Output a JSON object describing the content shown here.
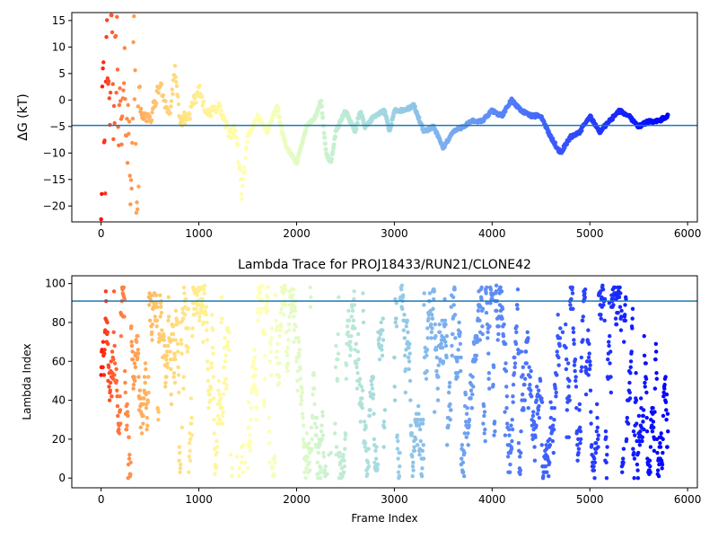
{
  "chart_data": [
    {
      "type": "scatter",
      "title": "",
      "xlabel": "",
      "ylabel": "ΔG (kT)",
      "xlim": [
        -300,
        6100
      ],
      "ylim": [
        -23,
        16.5
      ],
      "xticks": [
        0,
        1000,
        2000,
        3000,
        4000,
        5000,
        6000
      ],
      "xtick_labels": [
        "0",
        "1000",
        "2000",
        "3000",
        "4000",
        "5000",
        "6000"
      ],
      "yticks": [
        -20,
        -15,
        -10,
        -5,
        0,
        5,
        10,
        15
      ],
      "ytick_labels": [
        "−20",
        "−15",
        "−10",
        "−5",
        "0",
        "5",
        "10",
        "15"
      ],
      "hline": -4.8,
      "hline_color": "#1f77b4",
      "colormap": "rainbow (red at early frames → violet at late frames)",
      "grid": false,
      "trace_anchors": [
        [
          0,
          -20
        ],
        [
          20,
          15
        ],
        [
          40,
          -12
        ],
        [
          60,
          8
        ],
        [
          80,
          -5
        ],
        [
          100,
          12
        ],
        [
          130,
          -3
        ],
        [
          160,
          10
        ],
        [
          200,
          -8
        ],
        [
          250,
          2
        ],
        [
          300,
          -14
        ],
        [
          340,
          9
        ],
        [
          360,
          -18
        ],
        [
          400,
          -2
        ],
        [
          500,
          -4
        ],
        [
          600,
          3
        ],
        [
          700,
          -3
        ],
        [
          760,
          6
        ],
        [
          800,
          -4
        ],
        [
          900,
          -3
        ],
        [
          1000,
          2
        ],
        [
          1100,
          -3
        ],
        [
          1200,
          -1
        ],
        [
          1300,
          -6
        ],
        [
          1380,
          -6
        ],
        [
          1440,
          -18
        ],
        [
          1500,
          -7
        ],
        [
          1600,
          -3
        ],
        [
          1700,
          -6
        ],
        [
          1800,
          -1
        ],
        [
          1850,
          -6
        ],
        [
          1900,
          -9
        ],
        [
          2000,
          -12
        ],
        [
          2100,
          -5
        ],
        [
          2200,
          -3
        ],
        [
          2250,
          0
        ],
        [
          2300,
          -10
        ],
        [
          2350,
          -12
        ],
        [
          2400,
          -6
        ],
        [
          2500,
          -2
        ],
        [
          2600,
          -6
        ],
        [
          2650,
          -2
        ],
        [
          2700,
          -5
        ],
        [
          2800,
          -3
        ],
        [
          2900,
          -2
        ],
        [
          2950,
          -6
        ],
        [
          3000,
          -2
        ],
        [
          3100,
          -2
        ],
        [
          3200,
          -1
        ],
        [
          3300,
          -6
        ],
        [
          3400,
          -5
        ],
        [
          3500,
          -9
        ],
        [
          3600,
          -6
        ],
        [
          3700,
          -5
        ],
        [
          3800,
          -4
        ],
        [
          3900,
          -4
        ],
        [
          4000,
          -2
        ],
        [
          4100,
          -3
        ],
        [
          4200,
          0
        ],
        [
          4300,
          -2
        ],
        [
          4400,
          -3
        ],
        [
          4500,
          -3
        ],
        [
          4600,
          -7
        ],
        [
          4700,
          -10
        ],
        [
          4800,
          -7
        ],
        [
          4900,
          -6
        ],
        [
          5000,
          -3
        ],
        [
          5100,
          -6
        ],
        [
          5200,
          -4
        ],
        [
          5300,
          -2
        ],
        [
          5400,
          -3
        ],
        [
          5500,
          -5
        ],
        [
          5600,
          -4
        ],
        [
          5700,
          -4
        ],
        [
          5800,
          -3
        ]
      ]
    },
    {
      "type": "scatter",
      "title": "Lambda Trace for PROJ18433/RUN21/CLONE42",
      "xlabel": "Frame Index",
      "ylabel": "Lambda Index",
      "xlim": [
        -300,
        6100
      ],
      "ylim": [
        -5,
        104
      ],
      "xticks": [
        0,
        1000,
        2000,
        3000,
        4000,
        5000,
        6000
      ],
      "xtick_labels": [
        "0",
        "1000",
        "2000",
        "3000",
        "4000",
        "5000",
        "6000"
      ],
      "yticks": [
        0,
        20,
        40,
        60,
        80,
        100
      ],
      "ytick_labels": [
        "0",
        "20",
        "40",
        "60",
        "80",
        "100"
      ],
      "hline": 91,
      "hline_color": "#1f77b4",
      "colormap": "rainbow (red at early frames → violet at late frames)",
      "grid": false,
      "lambda_range": [
        0,
        99
      ],
      "frame_range": [
        0,
        5800
      ],
      "dense_regions": [
        [
          0,
          1300
        ],
        [
          1500,
          2300
        ],
        [
          2400,
          2900
        ],
        [
          3000,
          4700
        ],
        [
          4750,
          5800
        ]
      ]
    }
  ]
}
